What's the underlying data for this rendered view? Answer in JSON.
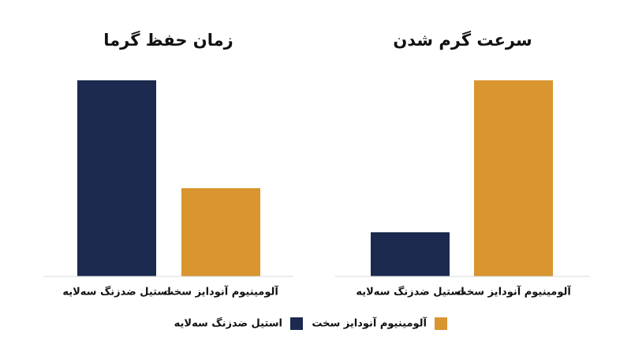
{
  "chart_data": [
    {
      "type": "bar",
      "title": "زمان حفظ گرما",
      "categories": [
        "استیل ضدزنگ سه‌لایه",
        "آلومینیوم آنودایز سخت"
      ],
      "values": [
        100,
        45
      ],
      "colors": [
        "#1b2a4e",
        "#d9952f"
      ],
      "ylim": [
        0,
        100
      ]
    },
    {
      "type": "bar",
      "title": "سرعت گرم شدن",
      "categories": [
        "استیل ضدزنگ سه‌لایه",
        "آلومینیوم آنودایز سخت"
      ],
      "values": [
        22.5,
        100
      ],
      "colors": [
        "#1b2a4e",
        "#d9952f"
      ],
      "ylim": [
        0,
        100
      ]
    }
  ],
  "legend": [
    {
      "name": "آلومینیوم آنودایز سخت",
      "color": "#d9952f"
    },
    {
      "name": "استیل ضدزنگ سه‌لایه",
      "color": "#1b2a4e"
    }
  ]
}
